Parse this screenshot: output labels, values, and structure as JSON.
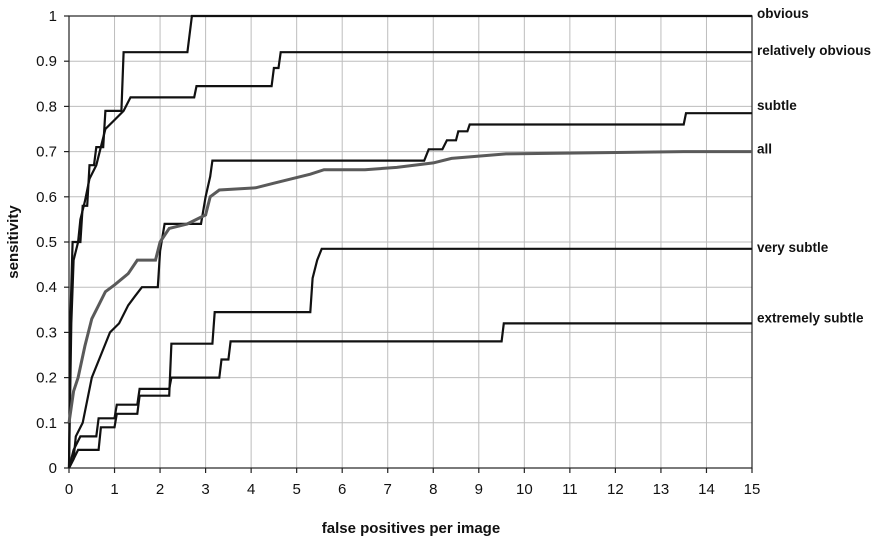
{
  "chart_data": {
    "type": "line",
    "xlabel": "false positives per image",
    "ylabel": "sensitivity",
    "xlim": [
      0,
      15
    ],
    "ylim": [
      0,
      1
    ],
    "x_ticks": [
      "0",
      "1",
      "2",
      "3",
      "4",
      "5",
      "6",
      "7",
      "8",
      "9",
      "10",
      "11",
      "12",
      "13",
      "14",
      "15"
    ],
    "y_ticks": [
      "0",
      "0.1",
      "0.2",
      "0.3",
      "0.4",
      "0.5",
      "0.6",
      "0.7",
      "0.8",
      "0.9",
      "1"
    ],
    "grid": true,
    "series": [
      {
        "name": "obvious",
        "color": "#111111",
        "points": [
          [
            0,
            0
          ],
          [
            0.03,
            0.33
          ],
          [
            0.08,
            0.5
          ],
          [
            0.25,
            0.5
          ],
          [
            0.3,
            0.58
          ],
          [
            0.4,
            0.58
          ],
          [
            0.45,
            0.67
          ],
          [
            0.55,
            0.67
          ],
          [
            0.6,
            0.71
          ],
          [
            0.75,
            0.71
          ],
          [
            0.8,
            0.79
          ],
          [
            1.15,
            0.79
          ],
          [
            1.2,
            0.92
          ],
          [
            2.6,
            0.92
          ],
          [
            2.7,
            1.0
          ],
          [
            15,
            1.0
          ]
        ]
      },
      {
        "name": "relatively obvious",
        "color": "#111111",
        "points": [
          [
            0,
            0
          ],
          [
            0.05,
            0.32
          ],
          [
            0.1,
            0.46
          ],
          [
            0.2,
            0.5
          ],
          [
            0.25,
            0.55
          ],
          [
            0.35,
            0.59
          ],
          [
            0.45,
            0.64
          ],
          [
            0.6,
            0.67
          ],
          [
            0.8,
            0.75
          ],
          [
            1.0,
            0.77
          ],
          [
            1.2,
            0.79
          ],
          [
            1.35,
            0.82
          ],
          [
            2.75,
            0.82
          ],
          [
            2.8,
            0.845
          ],
          [
            4.45,
            0.845
          ],
          [
            4.5,
            0.885
          ],
          [
            4.6,
            0.885
          ],
          [
            4.65,
            0.92
          ],
          [
            15,
            0.92
          ]
        ]
      },
      {
        "name": "subtle",
        "color": "#111111",
        "points": [
          [
            0,
            0
          ],
          [
            0.1,
            0.02
          ],
          [
            0.15,
            0.07
          ],
          [
            0.3,
            0.1
          ],
          [
            0.5,
            0.2
          ],
          [
            0.7,
            0.25
          ],
          [
            0.9,
            0.3
          ],
          [
            1.1,
            0.32
          ],
          [
            1.3,
            0.36
          ],
          [
            1.45,
            0.38
          ],
          [
            1.6,
            0.4
          ],
          [
            1.95,
            0.4
          ],
          [
            2.0,
            0.48
          ],
          [
            2.1,
            0.54
          ],
          [
            2.9,
            0.54
          ],
          [
            3.0,
            0.6
          ],
          [
            3.1,
            0.645
          ],
          [
            3.15,
            0.68
          ],
          [
            7.8,
            0.68
          ],
          [
            7.9,
            0.705
          ],
          [
            8.2,
            0.705
          ],
          [
            8.3,
            0.725
          ],
          [
            8.5,
            0.725
          ],
          [
            8.55,
            0.745
          ],
          [
            8.75,
            0.745
          ],
          [
            8.8,
            0.76
          ],
          [
            13.5,
            0.76
          ],
          [
            13.55,
            0.785
          ],
          [
            15,
            0.785
          ]
        ]
      },
      {
        "name": "all",
        "color": "#5a5a5a",
        "points": [
          [
            0,
            0.1
          ],
          [
            0.1,
            0.17
          ],
          [
            0.2,
            0.2
          ],
          [
            0.35,
            0.27
          ],
          [
            0.5,
            0.33
          ],
          [
            0.65,
            0.36
          ],
          [
            0.8,
            0.39
          ],
          [
            1.0,
            0.405
          ],
          [
            1.3,
            0.43
          ],
          [
            1.5,
            0.46
          ],
          [
            1.9,
            0.46
          ],
          [
            2.0,
            0.5
          ],
          [
            2.2,
            0.53
          ],
          [
            2.6,
            0.54
          ],
          [
            3.0,
            0.56
          ],
          [
            3.1,
            0.6
          ],
          [
            3.3,
            0.615
          ],
          [
            4.1,
            0.62
          ],
          [
            4.5,
            0.63
          ],
          [
            4.9,
            0.64
          ],
          [
            5.3,
            0.65
          ],
          [
            5.6,
            0.66
          ],
          [
            6.5,
            0.66
          ],
          [
            7.2,
            0.665
          ],
          [
            8.0,
            0.675
          ],
          [
            8.4,
            0.685
          ],
          [
            9.0,
            0.69
          ],
          [
            9.6,
            0.695
          ],
          [
            13.5,
            0.7
          ],
          [
            15,
            0.7
          ]
        ]
      },
      {
        "name": "very subtle",
        "color": "#111111",
        "points": [
          [
            0,
            0
          ],
          [
            0.1,
            0.02
          ],
          [
            0.2,
            0.04
          ],
          [
            0.65,
            0.04
          ],
          [
            0.7,
            0.09
          ],
          [
            1.0,
            0.09
          ],
          [
            1.05,
            0.12
          ],
          [
            1.5,
            0.12
          ],
          [
            1.55,
            0.16
          ],
          [
            2.2,
            0.16
          ],
          [
            2.25,
            0.275
          ],
          [
            3.15,
            0.275
          ],
          [
            3.2,
            0.345
          ],
          [
            5.3,
            0.345
          ],
          [
            5.35,
            0.42
          ],
          [
            5.45,
            0.46
          ],
          [
            5.55,
            0.485
          ],
          [
            15,
            0.485
          ]
        ]
      },
      {
        "name": "extremely subtle",
        "color": "#111111",
        "points": [
          [
            0,
            0
          ],
          [
            0.1,
            0.04
          ],
          [
            0.25,
            0.07
          ],
          [
            0.6,
            0.07
          ],
          [
            0.65,
            0.11
          ],
          [
            1.0,
            0.11
          ],
          [
            1.05,
            0.14
          ],
          [
            1.5,
            0.14
          ],
          [
            1.55,
            0.175
          ],
          [
            2.2,
            0.175
          ],
          [
            2.25,
            0.2
          ],
          [
            3.3,
            0.2
          ],
          [
            3.35,
            0.24
          ],
          [
            3.5,
            0.24
          ],
          [
            3.55,
            0.28
          ],
          [
            9.5,
            0.28
          ],
          [
            9.55,
            0.32
          ],
          [
            15,
            0.32
          ]
        ]
      }
    ]
  }
}
